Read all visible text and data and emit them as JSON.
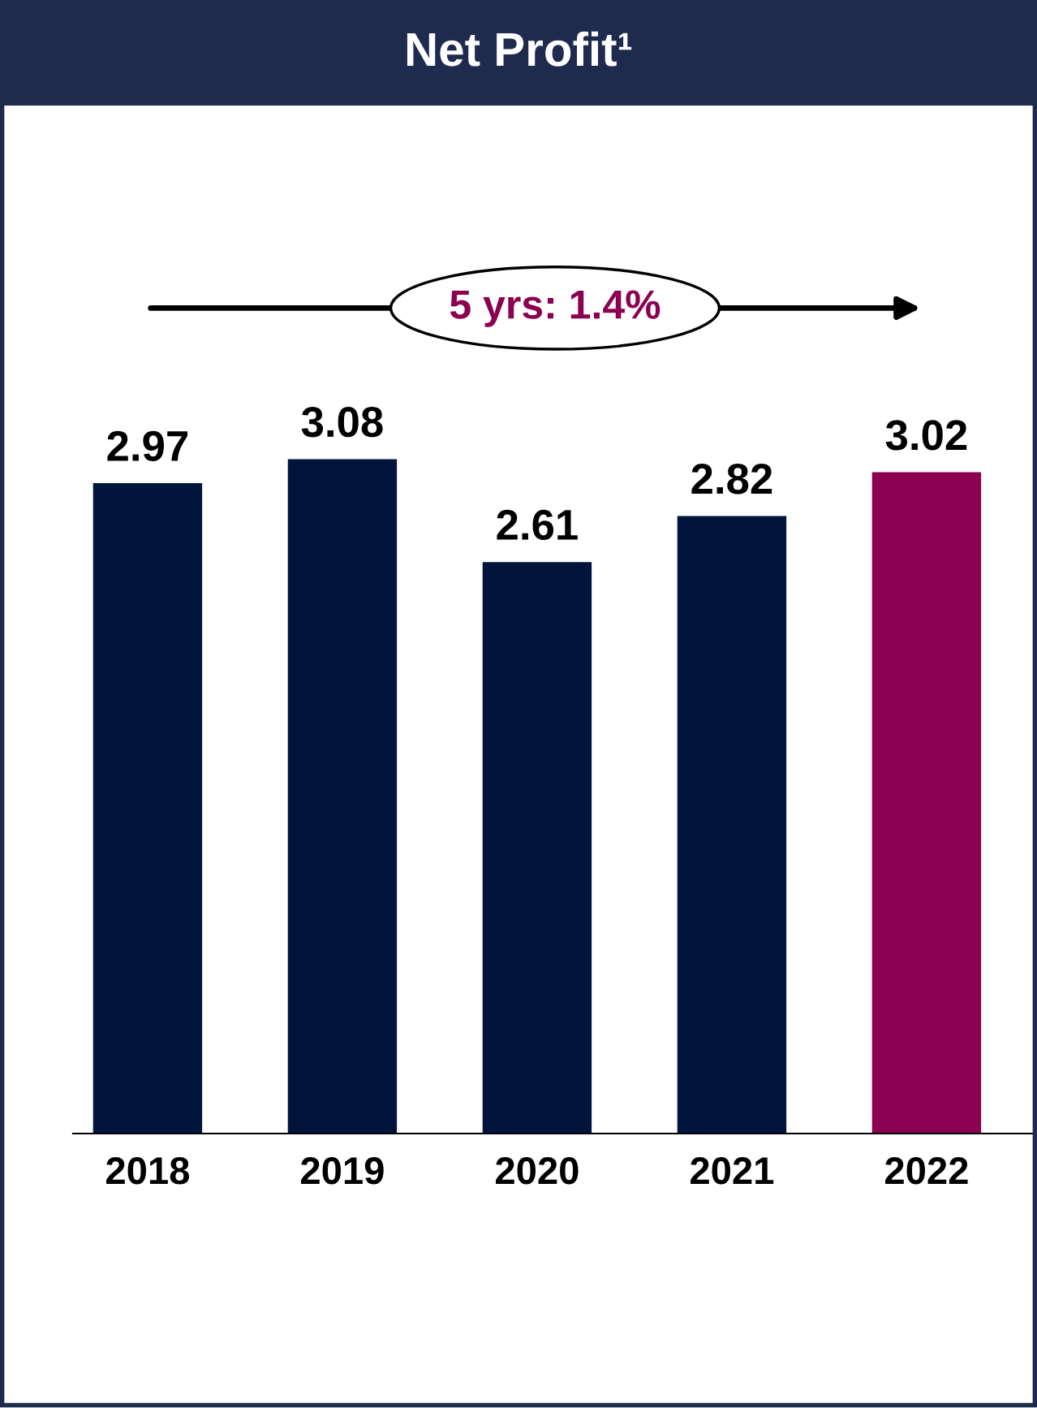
{
  "chart_data": {
    "type": "bar",
    "title": "Net Profit¹",
    "categories": [
      "2018",
      "2019",
      "2020",
      "2021",
      "2022"
    ],
    "values": [
      2.97,
      3.08,
      2.61,
      2.82,
      3.02
    ],
    "colors": [
      "#00143c",
      "#00143c",
      "#00143c",
      "#00143c",
      "#8b0050"
    ],
    "data_labels": true,
    "annotations": [
      "5 yrs: 1.4%"
    ],
    "grid": false,
    "legend": false
  }
}
